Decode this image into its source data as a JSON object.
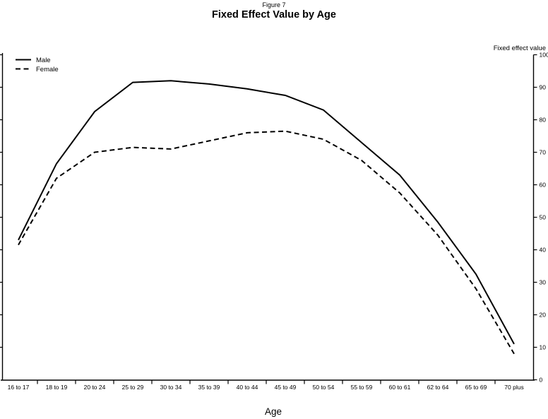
{
  "header": {
    "figure_label": "Figure 7",
    "title": "Fixed Effect Value by Age"
  },
  "chart_data": {
    "type": "line",
    "figure_label": "Figure 7",
    "title": "Fixed Effect Value by Age",
    "xlabel": "Age",
    "ylabel": "Fixed effect value",
    "ylim": [
      0,
      100
    ],
    "y_ticks": [
      0,
      10,
      20,
      30,
      40,
      50,
      60,
      70,
      80,
      90,
      100
    ],
    "y_axis_side": "right",
    "grid": false,
    "legend_position": "top-left",
    "categories": [
      "16 to 17",
      "18 to 19",
      "20 to 24",
      "25 to 29",
      "30 to 34",
      "35 to 39",
      "40 to 44",
      "45 to 49",
      "50 to 54",
      "55 to 59",
      "60 to 61",
      "62 to 64",
      "65 to 69",
      "70 plus"
    ],
    "series": [
      {
        "name": "Male",
        "style": "solid",
        "values": [
          43.0,
          66.5,
          82.5,
          91.5,
          92.0,
          91.0,
          89.5,
          87.5,
          83.0,
          73.0,
          63.0,
          48.5,
          32.5,
          11.0
        ]
      },
      {
        "name": "Female",
        "style": "dashed",
        "values": [
          41.5,
          62.0,
          70.0,
          71.5,
          71.0,
          73.5,
          76.0,
          76.5,
          74.0,
          67.5,
          57.5,
          44.5,
          28.0,
          8.0
        ]
      }
    ],
    "colors": {
      "line": "#000000",
      "background": "#ffffff"
    }
  }
}
